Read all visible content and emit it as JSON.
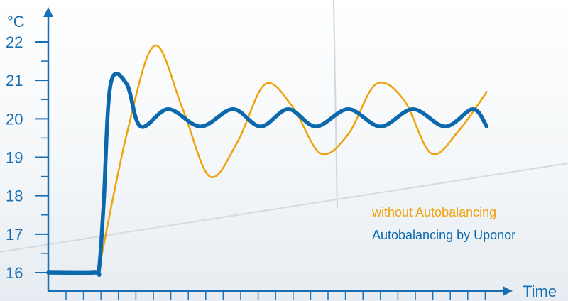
{
  "chart_data": {
    "type": "line",
    "ylabel": "°C",
    "xlabel": "Time",
    "y_ticks": [
      16,
      17,
      18,
      19,
      20,
      21,
      22
    ],
    "ylim": [
      15.7,
      22.3
    ],
    "xlim": [
      0,
      100
    ],
    "grid": false,
    "legend": {
      "placement": "bottom-right"
    },
    "colors": {
      "axis": "#1a6fb3",
      "without": "#f0a20b",
      "with": "#0b68ad"
    },
    "series": [
      {
        "name": "without Autobalancing",
        "x": [
          11,
          17,
          23,
          29,
          35,
          41,
          47,
          53,
          59,
          65,
          71,
          77,
          83,
          89,
          95
        ],
        "y": [
          16.1,
          19.6,
          21.9,
          20.3,
          18.5,
          19.4,
          20.9,
          20.3,
          19.1,
          19.6,
          20.9,
          20.5,
          19.1,
          19.7,
          20.7
        ]
      },
      {
        "name": "Autobalancing by Uponor",
        "x": [
          0,
          10,
          11,
          12,
          13.5,
          17,
          20,
          26,
          33,
          40,
          46,
          52,
          58,
          65,
          72,
          79,
          86,
          92,
          95
        ],
        "y": [
          16.0,
          16.0,
          16.1,
          17.8,
          20.9,
          20.9,
          19.8,
          20.25,
          19.8,
          20.25,
          19.8,
          20.25,
          19.8,
          20.25,
          19.8,
          20.25,
          19.8,
          20.25,
          19.8
        ]
      }
    ]
  }
}
